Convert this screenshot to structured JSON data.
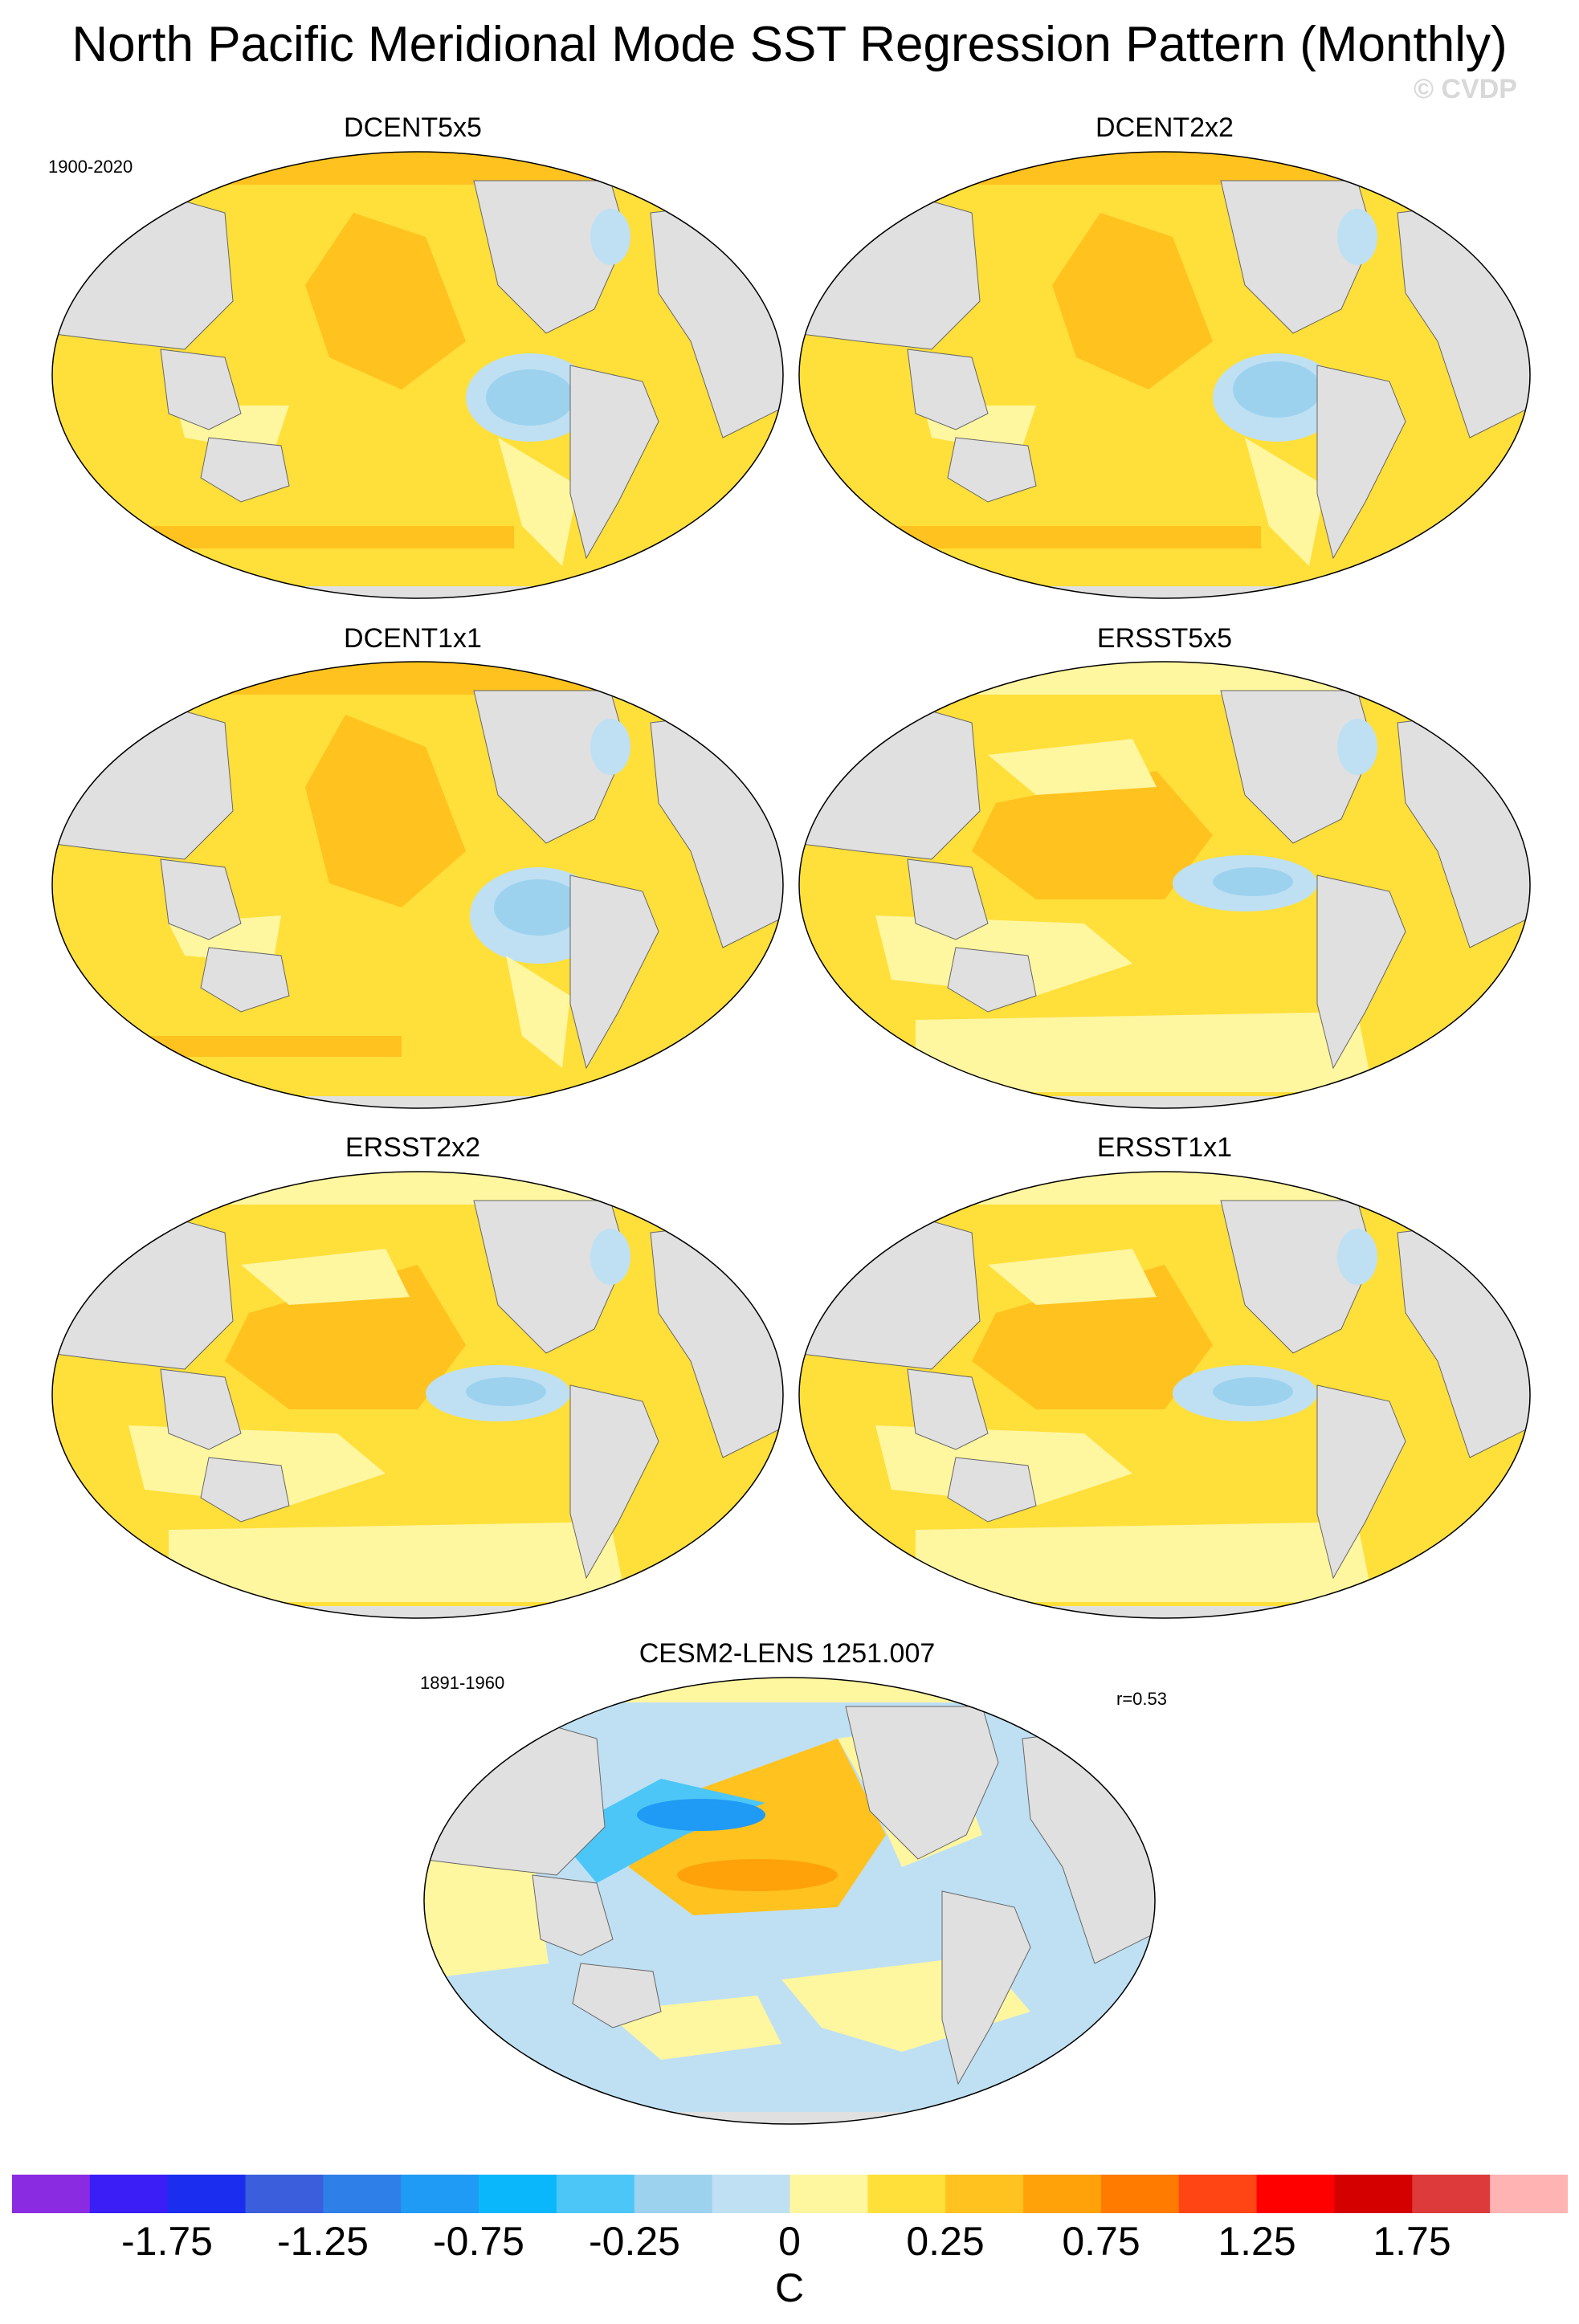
{
  "title": "North Pacific Meridional Mode SST Regression Pattern (Monthly)",
  "watermark": "© CVDP",
  "panels": [
    {
      "id": "dcent5x5",
      "title": "DCENT5x5",
      "period": "1900-2020"
    },
    {
      "id": "dcent2x2",
      "title": "DCENT2x2"
    },
    {
      "id": "dcent1x1",
      "title": "DCENT1x1"
    },
    {
      "id": "ersst5x5",
      "title": "ERSST5x5"
    },
    {
      "id": "ersst2x2",
      "title": "ERSST2x2"
    },
    {
      "id": "ersst1x1",
      "title": "ERSST1x1"
    },
    {
      "id": "cesm2",
      "title": "CESM2-LENS 1251.007",
      "period": "1891-1960",
      "corr": "r=0.53"
    }
  ],
  "colorbar": {
    "unit": "C",
    "tick_labels": [
      "-1.75",
      "-1.25",
      "-0.75",
      "-0.25",
      "0",
      "0.25",
      "0.75",
      "1.25",
      "1.75"
    ],
    "colors": [
      "#8a2be2",
      "#3a1ef5",
      "#1b2ef0",
      "#3b5fdc",
      "#2f7fe8",
      "#1f9bf5",
      "#0bb7fb",
      "#4cc6f7",
      "#9dd2ee",
      "#bfe0f3",
      "#fff6a0",
      "#ffdf3a",
      "#ffc21f",
      "#ffa20a",
      "#ff7b00",
      "#ff4514",
      "#ff0000",
      "#d40000",
      "#dd3b3b",
      "#ffb3b3"
    ]
  },
  "chart_data": {
    "type": "heatmap",
    "title": "North Pacific Meridional Mode SST Regression Pattern (Monthly)",
    "unit": "C",
    "levels": [
      -2.0,
      -1.75,
      -1.5,
      -1.25,
      -1.0,
      -0.75,
      -0.5,
      -0.25,
      0,
      0.25,
      0.5,
      0.75,
      1.0,
      1.25,
      1.5,
      1.75,
      2.0
    ],
    "maps": [
      "DCENT5x5",
      "DCENT2x2",
      "DCENT1x1",
      "ERSST5x5",
      "ERSST2x2",
      "ERSST1x1",
      "CESM2-LENS 1251.007"
    ]
  }
}
